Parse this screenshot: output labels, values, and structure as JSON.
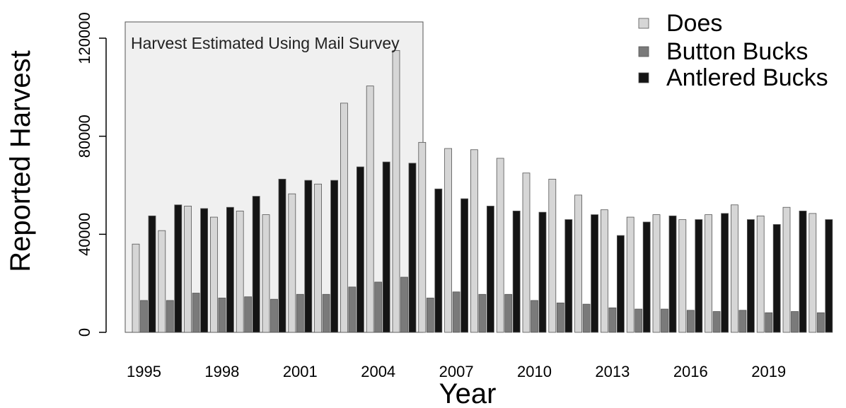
{
  "chart_data": {
    "type": "bar",
    "xlabel": "Year",
    "ylabel": "Reported Harvest",
    "annotation": "Harvest Estimated Using Mail Survey",
    "shaded_region": {
      "from_year": 1995,
      "to_year": 2005
    },
    "ylim": [
      0,
      125000
    ],
    "yticks": [
      0,
      40000,
      80000,
      120000
    ],
    "ytick_labels": [
      "0",
      "40000",
      "80000",
      "120000"
    ],
    "xtick_years": [
      1995,
      1998,
      2001,
      2004,
      2007,
      2010,
      2013,
      2016,
      2019
    ],
    "xtick_labels": [
      "1995",
      "1998",
      "2001",
      "2004",
      "2007",
      "2010",
      "2013",
      "2016",
      "2019"
    ],
    "legend_position": "top-right",
    "categories": [
      1995,
      1996,
      1997,
      1998,
      1999,
      2000,
      2001,
      2002,
      2003,
      2004,
      2005,
      2006,
      2007,
      2008,
      2009,
      2010,
      2011,
      2012,
      2013,
      2014,
      2015,
      2016,
      2017,
      2018,
      2019,
      2020,
      2021
    ],
    "series": [
      {
        "name": "Does",
        "color": "#d6d6d6",
        "values": [
          36000,
          41500,
          51500,
          47000,
          49500,
          48000,
          56500,
          60500,
          93500,
          100500,
          115000,
          77500,
          75000,
          74500,
          71000,
          65000,
          62500,
          56000,
          50000,
          47000,
          48000,
          46000,
          48000,
          52000,
          47500,
          51000,
          48500
        ]
      },
      {
        "name": "Button Bucks",
        "color": "#7a7a7a",
        "values": [
          13000,
          13000,
          16000,
          14000,
          14500,
          13500,
          15500,
          15500,
          18500,
          20500,
          22500,
          14000,
          16500,
          15500,
          15500,
          13000,
          12000,
          11500,
          10000,
          9500,
          9500,
          9000,
          8500,
          9000,
          8000,
          8500,
          8000
        ]
      },
      {
        "name": "Antlered Bucks",
        "color": "#141414",
        "values": [
          47500,
          52000,
          50500,
          51000,
          55500,
          62500,
          62000,
          62000,
          67500,
          69500,
          69000,
          58500,
          54500,
          51500,
          49500,
          49000,
          46000,
          48000,
          39500,
          45000,
          47500,
          46000,
          48500,
          46000,
          44000,
          49500,
          46000
        ]
      }
    ]
  }
}
